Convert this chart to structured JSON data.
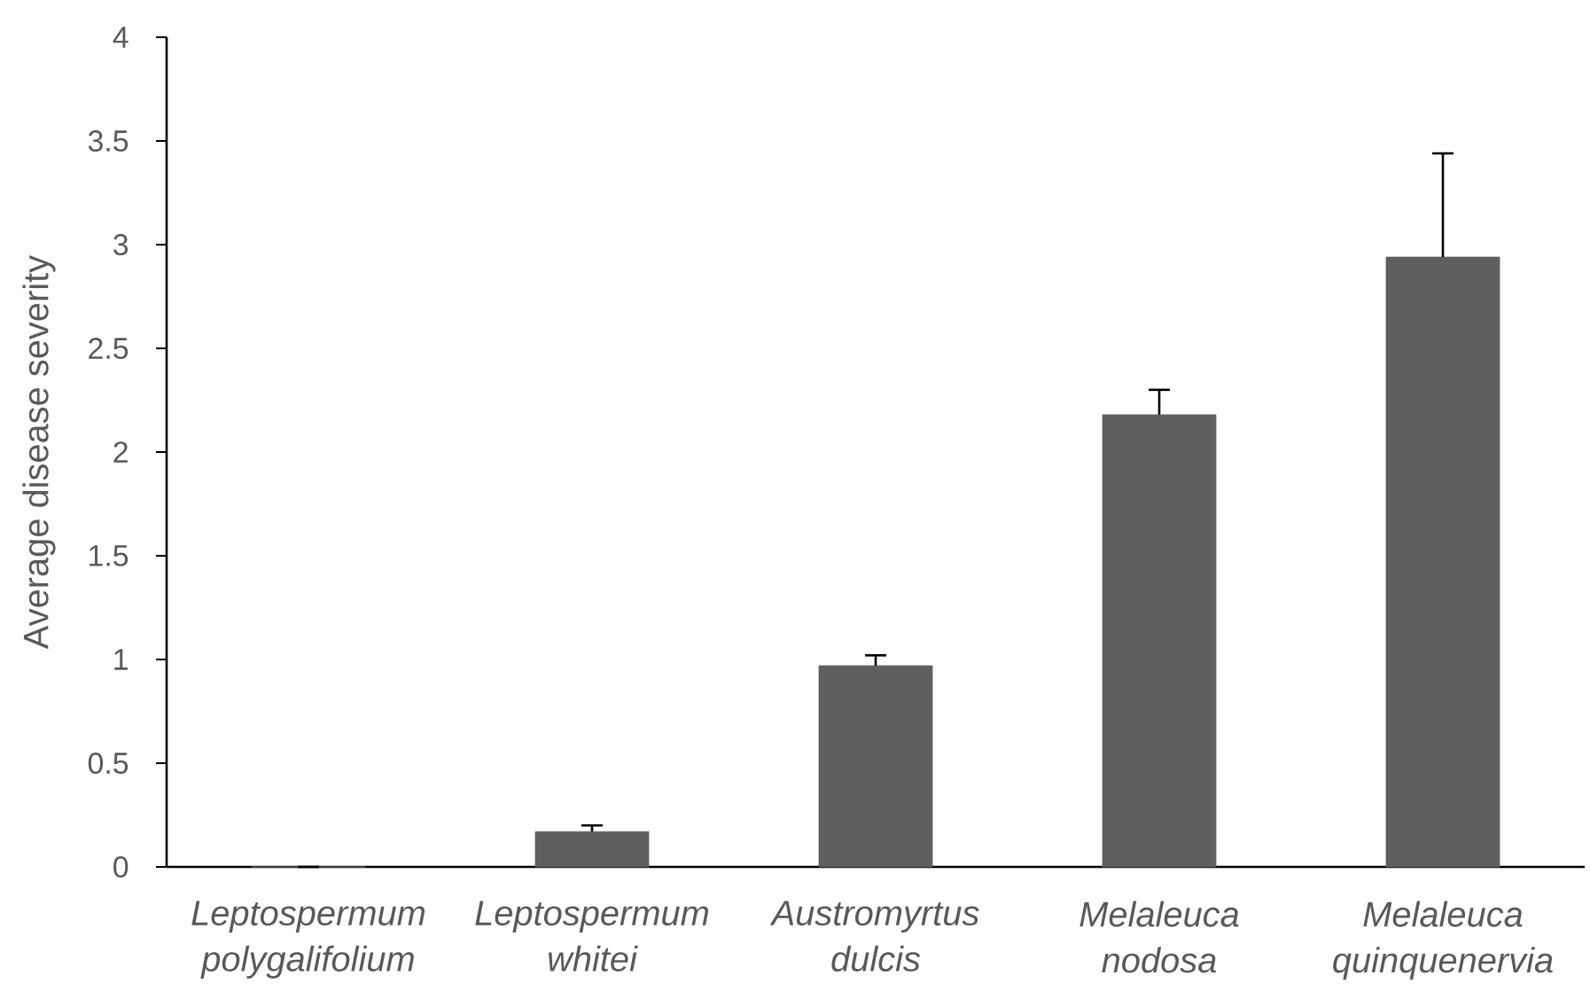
{
  "chart_data": {
    "type": "bar",
    "ylabel": "Average disease severity",
    "categories": [
      "Leptospermum polygalifolium",
      "Leptospermum whitei",
      "Austromyrtus dulcis",
      "Melaleuca nodosa",
      "Melaleuca quinquenervia"
    ],
    "values": [
      0,
      0.17,
      0.97,
      2.18,
      2.94
    ],
    "errors": [
      [
        0,
        0
      ],
      [
        0.17,
        0.2
      ],
      [
        0.97,
        1.02
      ],
      [
        2.18,
        2.3
      ],
      [
        2.94,
        3.44
      ]
    ],
    "color": "#5f5f5f",
    "ylim": [
      0,
      4
    ],
    "yticks": [
      0,
      0.5,
      1,
      1.5,
      2,
      2.5,
      3,
      3.5,
      4
    ]
  }
}
